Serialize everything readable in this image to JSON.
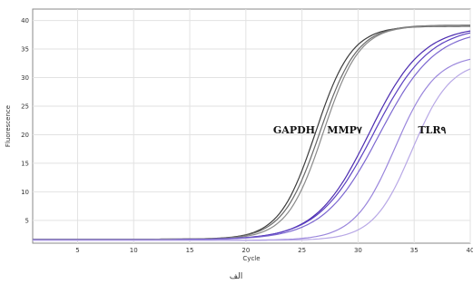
{
  "chart_data": {
    "type": "line",
    "xlabel": "Cycle",
    "ylabel": "Fluorescence",
    "xlim": [
      1,
      40
    ],
    "ylim": [
      1,
      42
    ],
    "x_ticks": [
      5,
      10,
      15,
      20,
      25,
      30,
      35,
      40
    ],
    "y_ticks": [
      5,
      10,
      15,
      20,
      25,
      30,
      35,
      40
    ],
    "grid": true,
    "annotations": [
      {
        "text": "GAPDH",
        "x": 24.3,
        "y": 20.2
      },
      {
        "text": "MMP٧",
        "x": 28.8,
        "y": 20.2
      },
      {
        "text": "TLR٩",
        "x": 36.6,
        "y": 20.2
      }
    ],
    "caption": "الف",
    "series": [
      {
        "group": "GAPDH",
        "color": "#3c3c3c",
        "baseline": 1.7,
        "plateau": 39.0,
        "midpoint": 26.2,
        "slope": 0.62
      },
      {
        "group": "GAPDH",
        "color": "#6a6a6a",
        "baseline": 1.7,
        "plateau": 39.2,
        "midpoint": 26.6,
        "slope": 0.6
      },
      {
        "group": "GAPDH",
        "color": "#8a8a8a",
        "baseline": 1.7,
        "plateau": 39.1,
        "midpoint": 26.9,
        "slope": 0.62
      },
      {
        "group": "MMP٧",
        "color": "#4b2bb0",
        "baseline": 1.6,
        "plateau": 39.0,
        "midpoint": 31.0,
        "slope": 0.42
      },
      {
        "group": "MMP٧",
        "color": "#5a3fc0",
        "baseline": 1.6,
        "plateau": 39.0,
        "midpoint": 31.4,
        "slope": 0.4
      },
      {
        "group": "MMP٧",
        "color": "#7b66d0",
        "baseline": 1.6,
        "plateau": 38.5,
        "midpoint": 31.9,
        "slope": 0.4
      },
      {
        "group": "TLR٩",
        "color": "#9a86dc",
        "baseline": 1.5,
        "plateau": 34.0,
        "midpoint": 33.3,
        "slope": 0.55
      },
      {
        "group": "TLR٩",
        "color": "#b8a8e6",
        "baseline": 1.5,
        "plateau": 33.0,
        "midpoint": 34.8,
        "slope": 0.58
      }
    ]
  }
}
